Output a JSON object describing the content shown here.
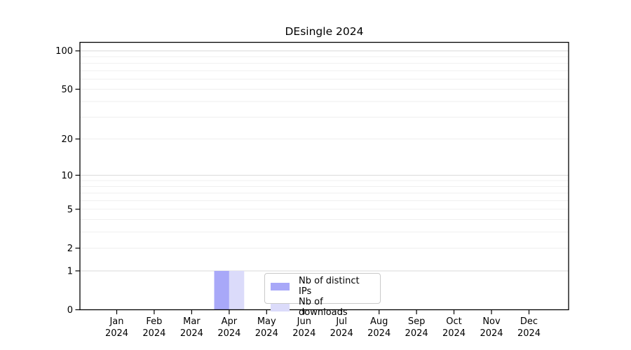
{
  "chart_data": {
    "type": "bar",
    "title": "DEsingle 2024",
    "categories": [
      "Jan 2024",
      "Feb 2024",
      "Mar 2024",
      "Apr 2024",
      "May 2024",
      "Jun 2024",
      "Jul 2024",
      "Aug 2024",
      "Sep 2024",
      "Oct 2024",
      "Nov 2024",
      "Dec 2024"
    ],
    "series": [
      {
        "name": "Nb of distinct IPs",
        "color": "#a8a8f8",
        "values": [
          0,
          0,
          0,
          1,
          0,
          0,
          0,
          0,
          0,
          0,
          0,
          0
        ]
      },
      {
        "name": "Nb of downloads",
        "color": "#dbdbfa",
        "values": [
          0,
          0,
          0,
          1,
          0,
          0,
          0,
          0,
          0,
          0,
          0,
          0
        ]
      }
    ],
    "y_axis": {
      "scale": "log1p",
      "ticks": [
        0,
        1,
        2,
        5,
        10,
        20,
        50,
        100
      ],
      "range_max": 116
    },
    "grid": {
      "major_values": [
        1,
        10,
        100
      ],
      "minor_values": [
        2,
        3,
        4,
        5,
        6,
        7,
        8,
        9,
        20,
        30,
        40,
        50,
        60,
        70,
        80,
        90
      ]
    },
    "legend": {
      "position": "bottom-center-inside"
    }
  }
}
